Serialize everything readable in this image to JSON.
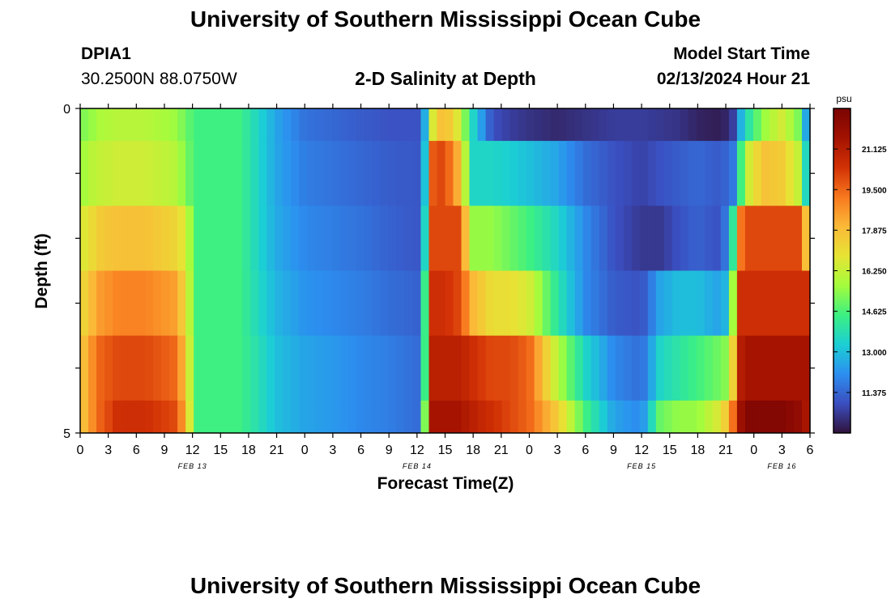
{
  "page": {
    "title_top": "University of Southern Mississippi Ocean Cube",
    "title_bottom": "University of Southern Mississippi Ocean Cube",
    "station": "DPIA1",
    "coords": "30.2500N  88.0750W",
    "subtitle": "2-D Salinity at Depth",
    "model_start_label": "Model Start Time",
    "model_start_value": "02/13/2024 Hour 21"
  },
  "colors": {
    "scale": [
      "#30123b",
      "#3b4ec0",
      "#2c8ff0",
      "#1bcfd4",
      "#3cf082",
      "#a4fc3c",
      "#e6e434",
      "#fbb938",
      "#f8781e",
      "#d23105",
      "#a31201",
      "#7a0403"
    ]
  },
  "chart_data": {
    "type": "heatmap",
    "title": "2-D Salinity at Depth",
    "xlabel": "Forecast Time(Z)",
    "ylabel": "Depth (ft)",
    "x_ticks": [
      "0",
      "3",
      "6",
      "9",
      "12",
      "15",
      "18",
      "21",
      "0",
      "3",
      "6",
      "9",
      "12",
      "15",
      "18",
      "21",
      "0",
      "3",
      "6",
      "9",
      "12",
      "15",
      "18",
      "21",
      "0",
      "3",
      "6"
    ],
    "date_labels": [
      {
        "label": "FEB 13",
        "hour": 12
      },
      {
        "label": "FEB 14",
        "hour": 36
      },
      {
        "label": "FEB 15",
        "hour": 60
      },
      {
        "label": "FEB 16",
        "hour": 75
      }
    ],
    "y_ticks": [
      "0",
      "5"
    ],
    "ylim": [
      0,
      5
    ],
    "xlim_hours": [
      0,
      78
    ],
    "colorbar": {
      "unit": "psu",
      "min": 9.75,
      "max": 22.75,
      "ticks": [
        "21.125",
        "19.500",
        "17.875",
        "16.250",
        "14.625",
        "13.000",
        "11.375"
      ]
    },
    "depth_bands_ft": [
      "0-0.5",
      "0.5-1.5",
      "1.5-2.5",
      "2.5-3.5",
      "3.5-4.5",
      "4.5-5"
    ],
    "time_knots_hours": [
      0,
      1,
      2,
      4,
      7,
      10,
      11.5,
      12,
      17,
      19,
      21,
      24,
      27,
      30,
      33,
      36,
      37,
      37.5,
      38,
      39,
      40.5,
      42,
      44,
      46,
      48,
      51,
      54,
      57,
      60,
      62,
      64,
      66,
      68,
      69.5,
      70,
      70.5,
      71,
      73,
      75,
      77,
      77.5,
      78
    ],
    "values_psu": [
      [
        15.2,
        15.4,
        15.8,
        16.0,
        16.0,
        15.6,
        15.0,
        14.5,
        14.5,
        13.5,
        12.5,
        11.6,
        11.4,
        11.2,
        11.0,
        11.0,
        13.0,
        16.0,
        17.5,
        18.0,
        16.5,
        13.5,
        11.0,
        10.6,
        10.4,
        10.2,
        10.4,
        10.6,
        10.6,
        10.5,
        10.4,
        10.1,
        10.0,
        10.2,
        11.0,
        12.5,
        13.5,
        15.5,
        16.5,
        15.0,
        13.0,
        10.0
      ],
      [
        15.5,
        16.0,
        16.2,
        16.4,
        16.4,
        16.0,
        15.2,
        14.5,
        14.5,
        13.5,
        12.5,
        11.8,
        11.6,
        11.4,
        11.2,
        11.1,
        13.5,
        19.5,
        20.0,
        20.0,
        18.0,
        13.5,
        13.5,
        13.3,
        13.0,
        12.5,
        11.5,
        11.0,
        10.7,
        11.0,
        11.2,
        11.4,
        11.2,
        11.4,
        12.0,
        14.0,
        16.0,
        17.8,
        17.5,
        16.0,
        14.0,
        11.0
      ],
      [
        16.5,
        17.0,
        17.5,
        17.8,
        17.8,
        17.3,
        16.5,
        14.5,
        14.5,
        13.5,
        12.6,
        12.0,
        11.8,
        11.6,
        11.3,
        11.1,
        14.0,
        20.0,
        20.0,
        20.0,
        20.0,
        15.5,
        15.5,
        15.0,
        14.5,
        13.5,
        12.0,
        11.0,
        10.5,
        10.5,
        11.0,
        11.3,
        11.0,
        12.0,
        16.0,
        19.0,
        20.0,
        20.0,
        20.0,
        20.0,
        18.0,
        17.0
      ],
      [
        17.0,
        17.8,
        18.5,
        19.0,
        19.0,
        18.5,
        17.0,
        14.5,
        14.5,
        13.6,
        12.8,
        12.2,
        12.0,
        11.8,
        11.5,
        11.3,
        15.0,
        20.5,
        20.5,
        20.5,
        20.0,
        18.0,
        17.0,
        17.0,
        16.5,
        14.0,
        12.0,
        11.2,
        11.0,
        12.5,
        13.0,
        13.0,
        12.5,
        13.0,
        18.0,
        20.5,
        20.5,
        20.5,
        20.5,
        20.5,
        20.5,
        20.5
      ],
      [
        17.5,
        18.5,
        19.5,
        20.0,
        20.0,
        19.5,
        17.5,
        14.5,
        14.5,
        13.8,
        13.0,
        12.5,
        12.3,
        12.0,
        11.8,
        11.5,
        15.0,
        21.0,
        21.0,
        21.0,
        21.0,
        20.5,
        20.0,
        20.0,
        19.5,
        16.0,
        13.5,
        12.0,
        11.5,
        13.5,
        14.0,
        14.5,
        15.0,
        15.5,
        19.0,
        21.0,
        21.5,
        21.5,
        21.5,
        21.5,
        21.5,
        21.5
      ],
      [
        17.5,
        18.5,
        19.5,
        20.5,
        20.5,
        20.0,
        18.0,
        14.5,
        14.5,
        13.8,
        13.0,
        12.5,
        12.3,
        12.0,
        11.8,
        11.5,
        16.0,
        21.5,
        21.5,
        21.5,
        21.5,
        21.0,
        20.5,
        20.0,
        19.5,
        17.5,
        14.5,
        12.5,
        12.0,
        15.0,
        15.5,
        15.5,
        16.5,
        18.0,
        20.5,
        21.5,
        22.5,
        22.5,
        22.5,
        22.0,
        21.5,
        21.0
      ]
    ]
  }
}
